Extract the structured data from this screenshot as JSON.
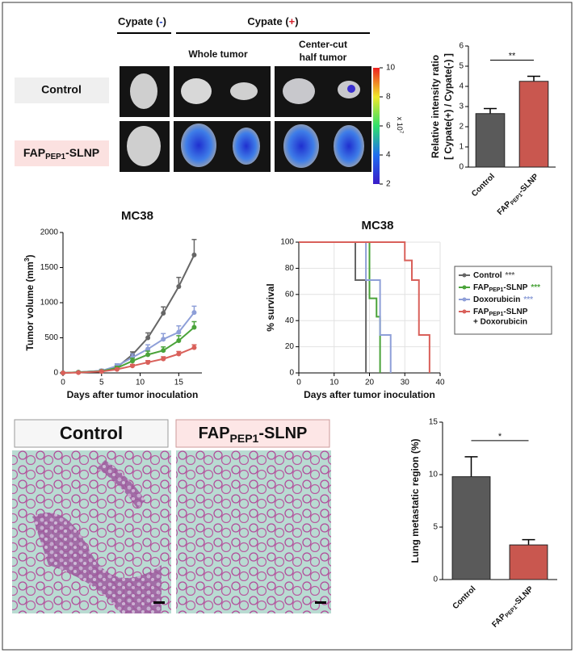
{
  "imaging": {
    "negative_header": [
      "Cypate (",
      {
        "text": "-",
        "color": "#1d3fc4"
      },
      ")"
    ],
    "positive_header": [
      "Cypate (",
      {
        "text": "+",
        "color": "#d4202a"
      },
      ")"
    ],
    "whole_tumor": "Whole tumor",
    "center_cut": [
      "Center-cut",
      "half tumor"
    ],
    "row_labels": [
      "Control",
      [
        "FAP",
        {
          "text": "PEP1",
          "script": "sub"
        },
        "-SLNP"
      ]
    ],
    "colorbar": {
      "range": [
        2,
        10
      ],
      "ticks": [
        2,
        4,
        6,
        8,
        10
      ],
      "label": [
        "x 10",
        {
          "text": "7",
          "script": "super"
        }
      ]
    }
  },
  "histology": {
    "labels": [
      "Control",
      [
        "FAP",
        {
          "text": "PEP1",
          "script": "sub"
        },
        "-SLNP"
      ]
    ]
  },
  "chart_data": [
    {
      "type": "bar",
      "categories": [
        "Control",
        [
          "FAP",
          {
            "text": "PEP1",
            "script": "sub"
          },
          "-SLNP"
        ]
      ],
      "values": [
        2.65,
        4.25
      ],
      "errors": [
        0.25,
        0.25
      ],
      "colors": [
        "#5a5a5a",
        "#c9574f"
      ],
      "ylabel": [
        "Relative intensity ratio",
        "[ Cypate(+) / Cypate(-) ]"
      ],
      "ylim": [
        0,
        6
      ],
      "yticks": [
        0,
        1,
        2,
        3,
        4,
        5,
        6
      ],
      "annotation": "**"
    },
    {
      "type": "line",
      "title": "MC38",
      "xlabel": "Days after tumor inoculation",
      "ylabel": [
        "Tumor volume  (mm",
        {
          "text": "3",
          "script": "super"
        },
        ")"
      ],
      "x": [
        0,
        2,
        5,
        7,
        9,
        11,
        13,
        15,
        17
      ],
      "series": [
        {
          "color": "#666666",
          "values": [
            0,
            10,
            30,
            80,
            260,
            500,
            850,
            1230,
            1680
          ],
          "errors": [
            5,
            10,
            20,
            30,
            40,
            70,
            90,
            130,
            220
          ]
        },
        {
          "color": "#8e9fd8",
          "values": [
            0,
            10,
            30,
            100,
            220,
            340,
            480,
            580,
            860
          ],
          "errors": [
            5,
            10,
            20,
            30,
            50,
            60,
            80,
            90,
            90
          ]
        },
        {
          "color": "#4aa33a",
          "values": [
            0,
            8,
            25,
            70,
            170,
            260,
            320,
            460,
            650
          ],
          "errors": [
            5,
            8,
            15,
            25,
            40,
            50,
            50,
            70,
            80
          ]
        },
        {
          "color": "#d9605a",
          "values": [
            0,
            5,
            20,
            50,
            100,
            150,
            200,
            270,
            360
          ],
          "errors": [
            3,
            5,
            10,
            15,
            20,
            25,
            30,
            35,
            40
          ]
        }
      ],
      "xlim": [
        0,
        18
      ],
      "xticks": [
        0,
        5,
        10,
        15
      ],
      "ylim": [
        0,
        2000
      ],
      "yticks": [
        0,
        500,
        1000,
        1500,
        2000
      ]
    },
    {
      "type": "survival",
      "title": "MC38",
      "xlabel": "Days after tumor inoculation",
      "ylabel": "% survival",
      "series": [
        {
          "name": [
            "Control"
          ],
          "sig": "***",
          "color": "#666666",
          "x": [
            0,
            16,
            19
          ],
          "values": [
            100,
            71,
            0
          ]
        },
        {
          "name": [
            "FAP",
            {
              "text": "PEP1",
              "script": "sub"
            },
            "-SLNP"
          ],
          "sig": "***",
          "color": "#4aa33a",
          "x": [
            0,
            20,
            22,
            23
          ],
          "values": [
            100,
            57,
            43,
            0
          ]
        },
        {
          "name": [
            "Doxorubicin"
          ],
          "sig": "***",
          "color": "#8e9fd8",
          "x": [
            0,
            19,
            23,
            26
          ],
          "values": [
            100,
            71,
            29,
            0
          ]
        },
        {
          "name": [
            "FAP",
            {
              "text": "PEP1",
              "script": "sub"
            },
            "-SLNP",
            {
              "text": "+ Doxorubicin",
              "script": "break"
            }
          ],
          "color": "#d9605a",
          "x": [
            0,
            30,
            32,
            34,
            37
          ],
          "values": [
            100,
            86,
            71,
            29,
            0
          ]
        }
      ],
      "xlim": [
        0,
        40
      ],
      "xticks": [
        0,
        10,
        20,
        30,
        40
      ],
      "ylim": [
        0,
        100
      ],
      "yticks": [
        0,
        20,
        40,
        60,
        80,
        100
      ],
      "grid": true
    },
    {
      "type": "bar",
      "categories": [
        "Control",
        [
          "FAP",
          {
            "text": "PEP1",
            "script": "sub"
          },
          "-SLNP"
        ]
      ],
      "values": [
        9.8,
        3.3
      ],
      "errors": [
        1.9,
        0.5
      ],
      "colors": [
        "#5a5a5a",
        "#c9574f"
      ],
      "ylabel": [
        "Lung metastatic region (%)"
      ],
      "ylim": [
        0,
        15
      ],
      "yticks": [
        0,
        5,
        10,
        15
      ],
      "annotation": "*"
    }
  ]
}
